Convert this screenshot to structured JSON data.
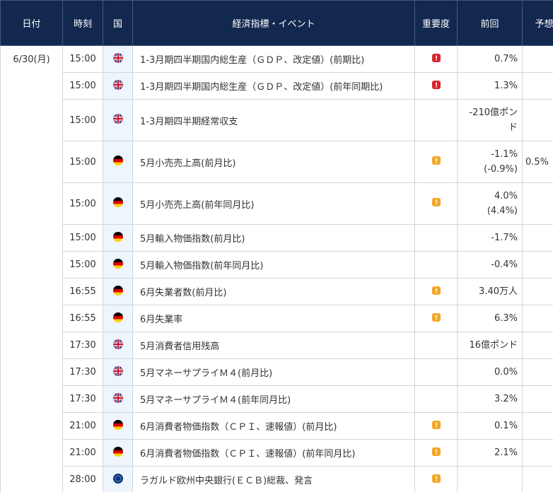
{
  "table": {
    "headers": [
      "日付",
      "時刻",
      "国",
      "経済指標・イベント",
      "重要度",
      "前回",
      "予想"
    ],
    "date": "6/30(月)",
    "rows": [
      {
        "time": "15:00",
        "event": "1-3月期四半期国内総生産（ＧＤＰ、改定値）(前期比)",
        "previous": "0.7%"
      },
      {
        "time": "15:00",
        "event": "1-3月期四半期国内総生産（ＧＤＰ、改定値）(前年同期比)",
        "previous": "1.3%"
      },
      {
        "time": "15:00",
        "event": "1-3月期四半期経常収支",
        "previous": "-210億ポンド"
      },
      {
        "time": "15:00",
        "event": "5月小売売上高(前月比)",
        "previous": "-1.1%",
        "revised": "(-0.9%)",
        "forecast": "0.5%"
      },
      {
        "time": "15:00",
        "event": "5月小売売上高(前年同月比)",
        "previous": "4.0%",
        "revised": "(4.4%)"
      },
      {
        "time": "15:00",
        "event": "5月輸入物価指数(前月比)",
        "previous": "-1.7%"
      },
      {
        "time": "15:00",
        "event": "5月輸入物価指数(前年同月比)",
        "previous": "-0.4%"
      },
      {
        "time": "16:55",
        "event": "6月失業者数(前月比)",
        "previous": "3.40万人"
      },
      {
        "time": "16:55",
        "event": "6月失業率",
        "previous": "6.3%"
      },
      {
        "time": "17:30",
        "event": "5月消費者信用残高",
        "previous": "16億ポンド"
      },
      {
        "time": "17:30",
        "event": "5月マネーサプライＭ４(前月比)",
        "previous": "0.0%"
      },
      {
        "time": "17:30",
        "event": "5月マネーサプライＭ４(前年同月比)",
        "previous": "3.2%"
      },
      {
        "time": "21:00",
        "event": "6月消費者物価指数（ＣＰＩ、速報値）(前月比)",
        "previous": "0.1%"
      },
      {
        "time": "21:00",
        "event": "6月消費者物価指数（ＣＰＩ、速報値）(前年同月比)",
        "previous": "2.1%"
      },
      {
        "time": "28:00",
        "event": "ラガルド欧州中央銀行(ＥＣＢ)総裁、発言"
      }
    ]
  }
}
